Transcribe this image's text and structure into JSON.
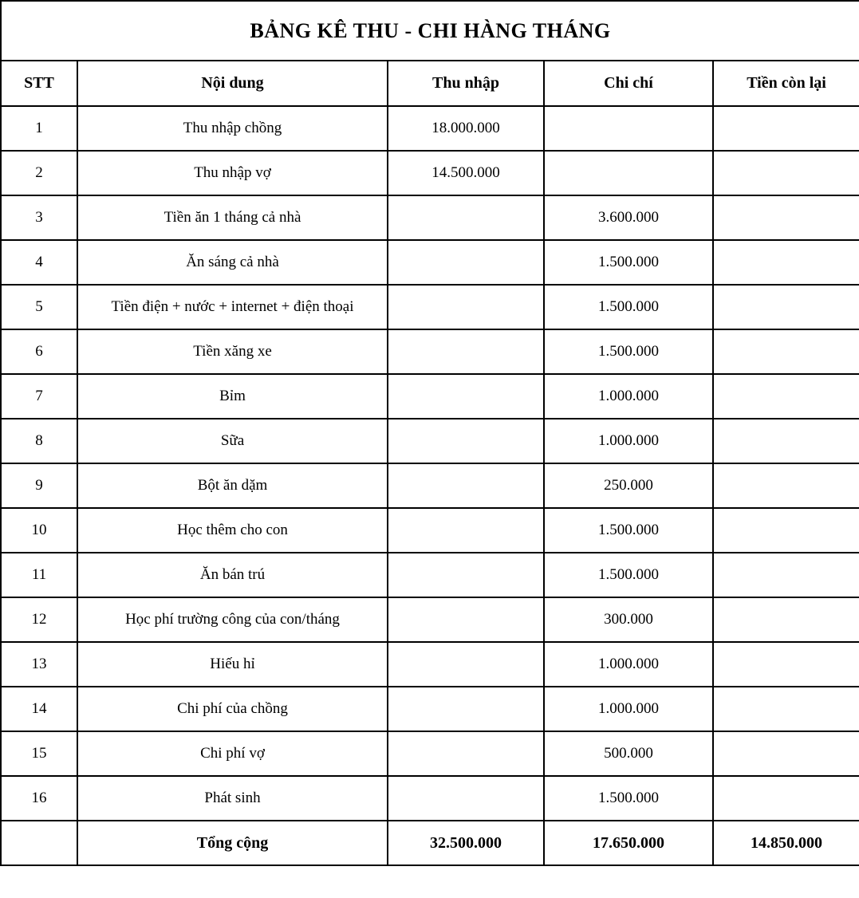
{
  "title": "BẢNG KÊ THU - CHI HÀNG THÁNG",
  "table": {
    "headers": [
      "STT",
      "Nội dung",
      "Thu nhập",
      "Chi chí",
      "Tiền còn lại"
    ],
    "rows": [
      {
        "stt": "1",
        "noi_dung": "Thu nhập chồng",
        "thu_nhap": "18.000.000",
        "chi_chi": "",
        "tien_con_lai": ""
      },
      {
        "stt": "2",
        "noi_dung": "Thu nhập vợ",
        "thu_nhap": "14.500.000",
        "chi_chi": "",
        "tien_con_lai": ""
      },
      {
        "stt": "3",
        "noi_dung": "Tiền ăn 1 tháng cả nhà",
        "thu_nhap": "",
        "chi_chi": "3.600.000",
        "tien_con_lai": ""
      },
      {
        "stt": "4",
        "noi_dung": "Ăn sáng cả nhà",
        "thu_nhap": "",
        "chi_chi": "1.500.000",
        "tien_con_lai": ""
      },
      {
        "stt": "5",
        "noi_dung": "Tiền điện + nước + internet + điện thoại",
        "thu_nhap": "",
        "chi_chi": "1.500.000",
        "tien_con_lai": ""
      },
      {
        "stt": "6",
        "noi_dung": "Tiền xăng xe",
        "thu_nhap": "",
        "chi_chi": "1.500.000",
        "tien_con_lai": ""
      },
      {
        "stt": "7",
        "noi_dung": "Bỉm",
        "thu_nhap": "",
        "chi_chi": "1.000.000",
        "tien_con_lai": ""
      },
      {
        "stt": "8",
        "noi_dung": "Sữa",
        "thu_nhap": "",
        "chi_chi": "1.000.000",
        "tien_con_lai": ""
      },
      {
        "stt": "9",
        "noi_dung": "Bột ăn dặm",
        "thu_nhap": "",
        "chi_chi": "250.000",
        "tien_con_lai": ""
      },
      {
        "stt": "10",
        "noi_dung": "Học thêm cho con",
        "thu_nhap": "",
        "chi_chi": "1.500.000",
        "tien_con_lai": ""
      },
      {
        "stt": "11",
        "noi_dung": "Ăn bán trú",
        "thu_nhap": "",
        "chi_chi": "1.500.000",
        "tien_con_lai": ""
      },
      {
        "stt": "12",
        "noi_dung": "Học phí trường công của con/tháng",
        "thu_nhap": "",
        "chi_chi": "300.000",
        "tien_con_lai": ""
      },
      {
        "stt": "13",
        "noi_dung": "Hiếu hỉ",
        "thu_nhap": "",
        "chi_chi": "1.000.000",
        "tien_con_lai": ""
      },
      {
        "stt": "14",
        "noi_dung": "Chi phí của chồng",
        "thu_nhap": "",
        "chi_chi": "1.000.000",
        "tien_con_lai": ""
      },
      {
        "stt": "15",
        "noi_dung": "Chi phí vợ",
        "thu_nhap": "",
        "chi_chi": "500.000",
        "tien_con_lai": ""
      },
      {
        "stt": "16",
        "noi_dung": "Phát sinh",
        "thu_nhap": "",
        "chi_chi": "1.500.000",
        "tien_con_lai": ""
      }
    ],
    "total": {
      "label": "Tổng cộng",
      "thu_nhap": "32.500.000",
      "chi_chi": "17.650.000",
      "tien_con_lai": "14.850.000"
    }
  },
  "colors": {
    "text": "#000000",
    "border": "#000000",
    "background": "#ffffff"
  }
}
